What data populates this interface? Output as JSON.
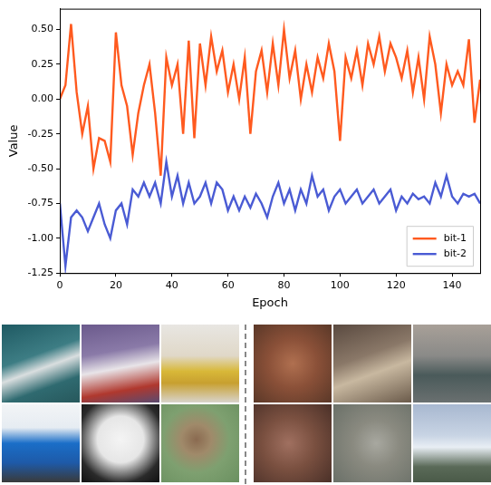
{
  "chart_data": {
    "type": "line",
    "x_label": "Epoch",
    "y_label": "Value",
    "x": [
      0,
      2,
      4,
      6,
      8,
      10,
      12,
      14,
      16,
      18,
      20,
      22,
      24,
      26,
      28,
      30,
      32,
      34,
      36,
      38,
      40,
      42,
      44,
      46,
      48,
      50,
      52,
      54,
      56,
      58,
      60,
      62,
      64,
      66,
      68,
      70,
      72,
      74,
      76,
      78,
      80,
      82,
      84,
      86,
      88,
      90,
      92,
      94,
      96,
      98,
      100,
      102,
      104,
      106,
      108,
      110,
      112,
      114,
      116,
      118,
      120,
      122,
      124,
      126,
      128,
      130,
      132,
      134,
      136,
      138,
      140,
      142,
      144,
      146,
      148,
      150
    ],
    "series": [
      {
        "name": "bit-1",
        "color": "#ff5a1f",
        "values": [
          0.0,
          0.1,
          0.54,
          0.05,
          -0.25,
          -0.05,
          -0.5,
          -0.28,
          -0.3,
          -0.45,
          0.48,
          0.1,
          -0.05,
          -0.4,
          -0.1,
          0.1,
          0.25,
          -0.1,
          -0.55,
          0.3,
          0.1,
          0.25,
          -0.25,
          0.42,
          -0.28,
          0.4,
          0.1,
          0.45,
          0.2,
          0.35,
          0.05,
          0.25,
          0.0,
          0.3,
          -0.25,
          0.2,
          0.35,
          0.05,
          0.4,
          0.1,
          0.5,
          0.15,
          0.35,
          0.0,
          0.25,
          0.05,
          0.3,
          0.15,
          0.4,
          0.2,
          -0.3,
          0.3,
          0.15,
          0.35,
          0.1,
          0.4,
          0.25,
          0.45,
          0.2,
          0.4,
          0.3,
          0.15,
          0.35,
          0.05,
          0.3,
          0.0,
          0.45,
          0.25,
          -0.1,
          0.25,
          0.1,
          0.2,
          0.1,
          0.43,
          -0.17,
          0.14
        ]
      },
      {
        "name": "bit-2",
        "color": "#4a5bd4",
        "values": [
          -0.75,
          -1.2,
          -0.85,
          -0.8,
          -0.85,
          -0.95,
          -0.85,
          -0.75,
          -0.9,
          -1.0,
          -0.8,
          -0.75,
          -0.9,
          -0.65,
          -0.7,
          -0.6,
          -0.7,
          -0.6,
          -0.75,
          -0.45,
          -0.7,
          -0.55,
          -0.75,
          -0.6,
          -0.75,
          -0.7,
          -0.6,
          -0.75,
          -0.6,
          -0.65,
          -0.8,
          -0.7,
          -0.8,
          -0.7,
          -0.78,
          -0.68,
          -0.75,
          -0.85,
          -0.7,
          -0.6,
          -0.75,
          -0.65,
          -0.8,
          -0.65,
          -0.75,
          -0.55,
          -0.7,
          -0.65,
          -0.8,
          -0.7,
          -0.65,
          -0.75,
          -0.7,
          -0.65,
          -0.75,
          -0.7,
          -0.65,
          -0.75,
          -0.7,
          -0.65,
          -0.8,
          -0.7,
          -0.75,
          -0.68,
          -0.72,
          -0.7,
          -0.75,
          -0.6,
          -0.7,
          -0.55,
          -0.7,
          -0.75,
          -0.68,
          -0.7,
          -0.68,
          -0.75
        ]
      }
    ],
    "xlim": [
      0,
      150
    ],
    "xticks": [
      0,
      20,
      40,
      60,
      80,
      100,
      120,
      140
    ],
    "ylim": [
      -1.25,
      0.65
    ],
    "yticks": [
      -1.25,
      {
        "value": -1,
        "label": "-1.00"
      },
      -0.75,
      {
        "value": -0.5,
        "label": "-0.50"
      },
      -0.25,
      {
        "value": 0,
        "label": "0.00"
      },
      0.25,
      {
        "value": 0.5,
        "label": "0.50"
      }
    ],
    "grid": false,
    "legend": "lower right"
  }
}
